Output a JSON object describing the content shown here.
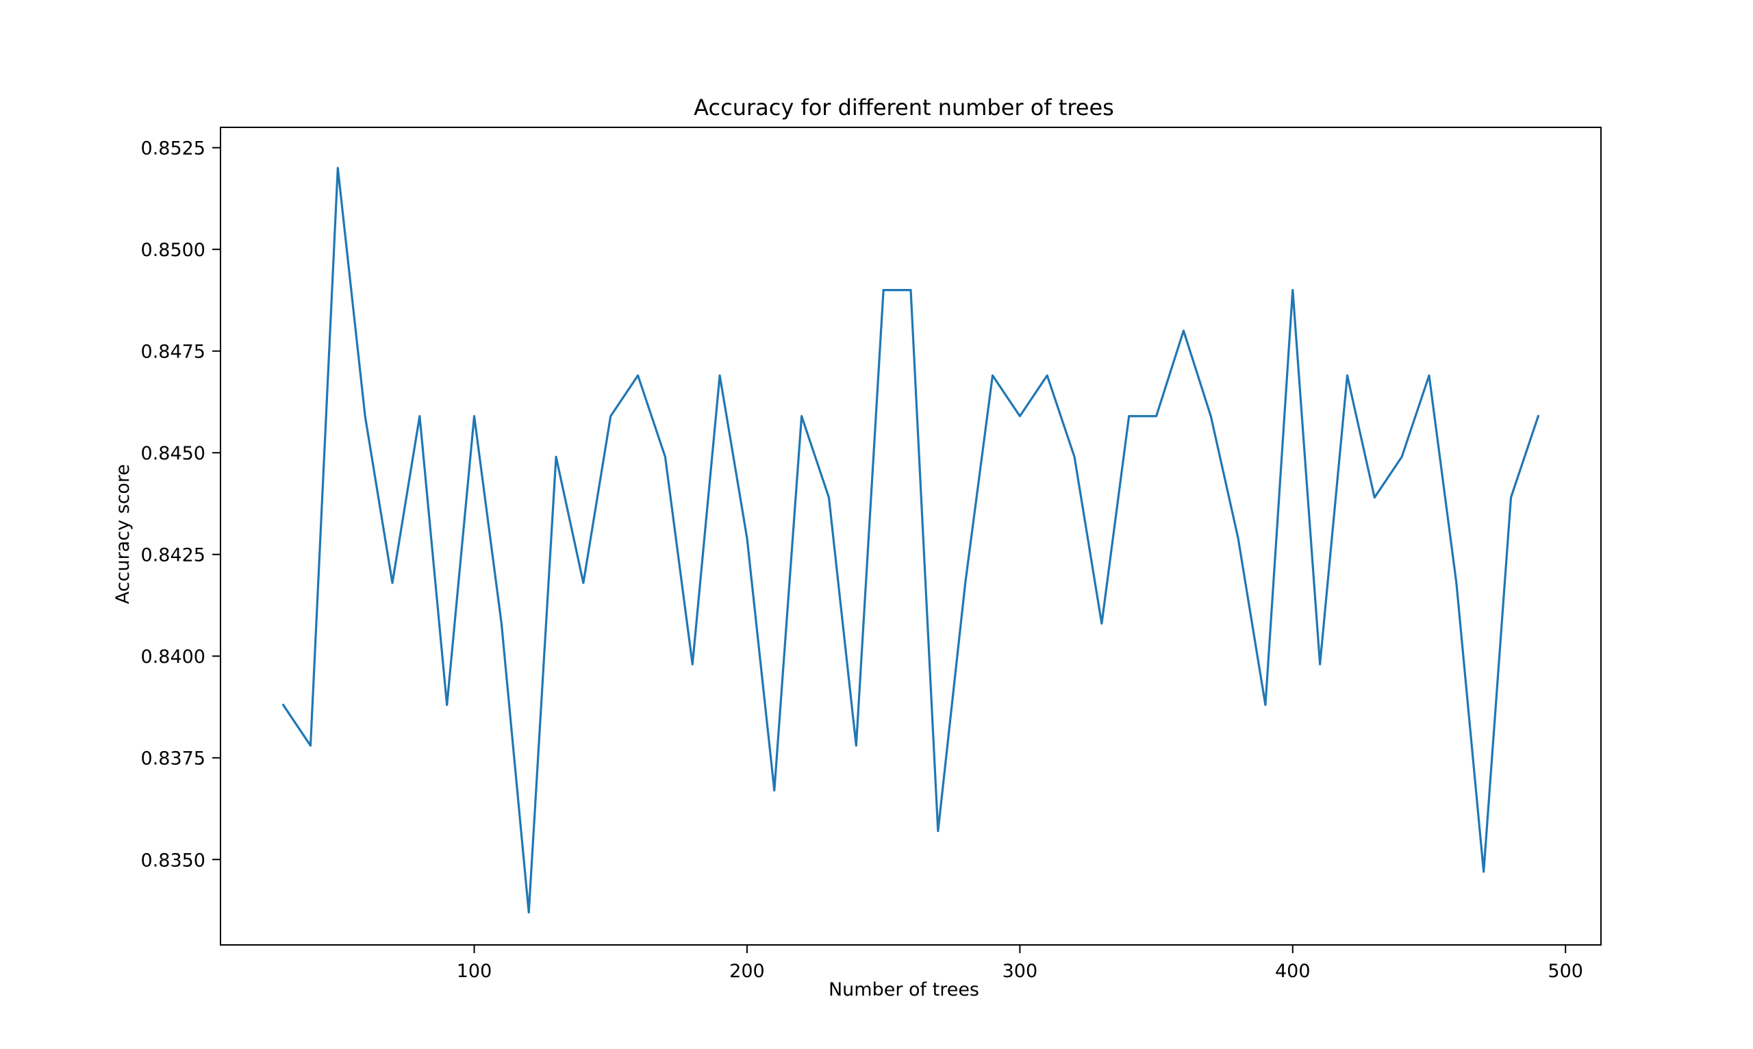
{
  "chart_data": {
    "type": "line",
    "title": "Accuracy for different number of trees",
    "xlabel": "Number of trees",
    "ylabel": "Accuracy score",
    "xlim": [
      7,
      513
    ],
    "ylim": [
      0.8329,
      0.853
    ],
    "xticks": [
      100,
      200,
      300,
      400,
      500
    ],
    "yticks": [
      0.835,
      0.8375,
      0.84,
      0.8425,
      0.845,
      0.8475,
      0.85,
      0.8525
    ],
    "xtick_labels": [
      "100",
      "200",
      "300",
      "400",
      "500"
    ],
    "ytick_labels": [
      "0.8350",
      "0.8375",
      "0.8400",
      "0.8425",
      "0.8450",
      "0.8475",
      "0.8500",
      "0.8525"
    ],
    "grid": false,
    "series": [
      {
        "color": "#1f77b4",
        "x": [
          30,
          40,
          50,
          60,
          70,
          80,
          90,
          100,
          110,
          120,
          130,
          140,
          150,
          160,
          170,
          180,
          190,
          200,
          210,
          220,
          230,
          240,
          250,
          260,
          270,
          280,
          290,
          300,
          310,
          320,
          330,
          340,
          350,
          360,
          370,
          380,
          390,
          400,
          410,
          420,
          430,
          440,
          450,
          460,
          470,
          480,
          490
        ],
        "y": [
          0.8388,
          0.8378,
          0.852,
          0.8459,
          0.8418,
          0.8459,
          0.8388,
          0.8459,
          0.8408,
          0.8337,
          0.8449,
          0.8418,
          0.8459,
          0.8469,
          0.8449,
          0.8398,
          0.8469,
          0.8429,
          0.8367,
          0.8459,
          0.8439,
          0.8378,
          0.849,
          0.849,
          0.8357,
          0.8418,
          0.8469,
          0.8459,
          0.8469,
          0.8449,
          0.8408,
          0.8459,
          0.8459,
          0.848,
          0.8459,
          0.8429,
          0.8388,
          0.849,
          0.8398,
          0.8469,
          0.8439,
          0.8449,
          0.8469,
          0.8418,
          0.8347,
          0.8439,
          0.8459
        ]
      }
    ]
  }
}
